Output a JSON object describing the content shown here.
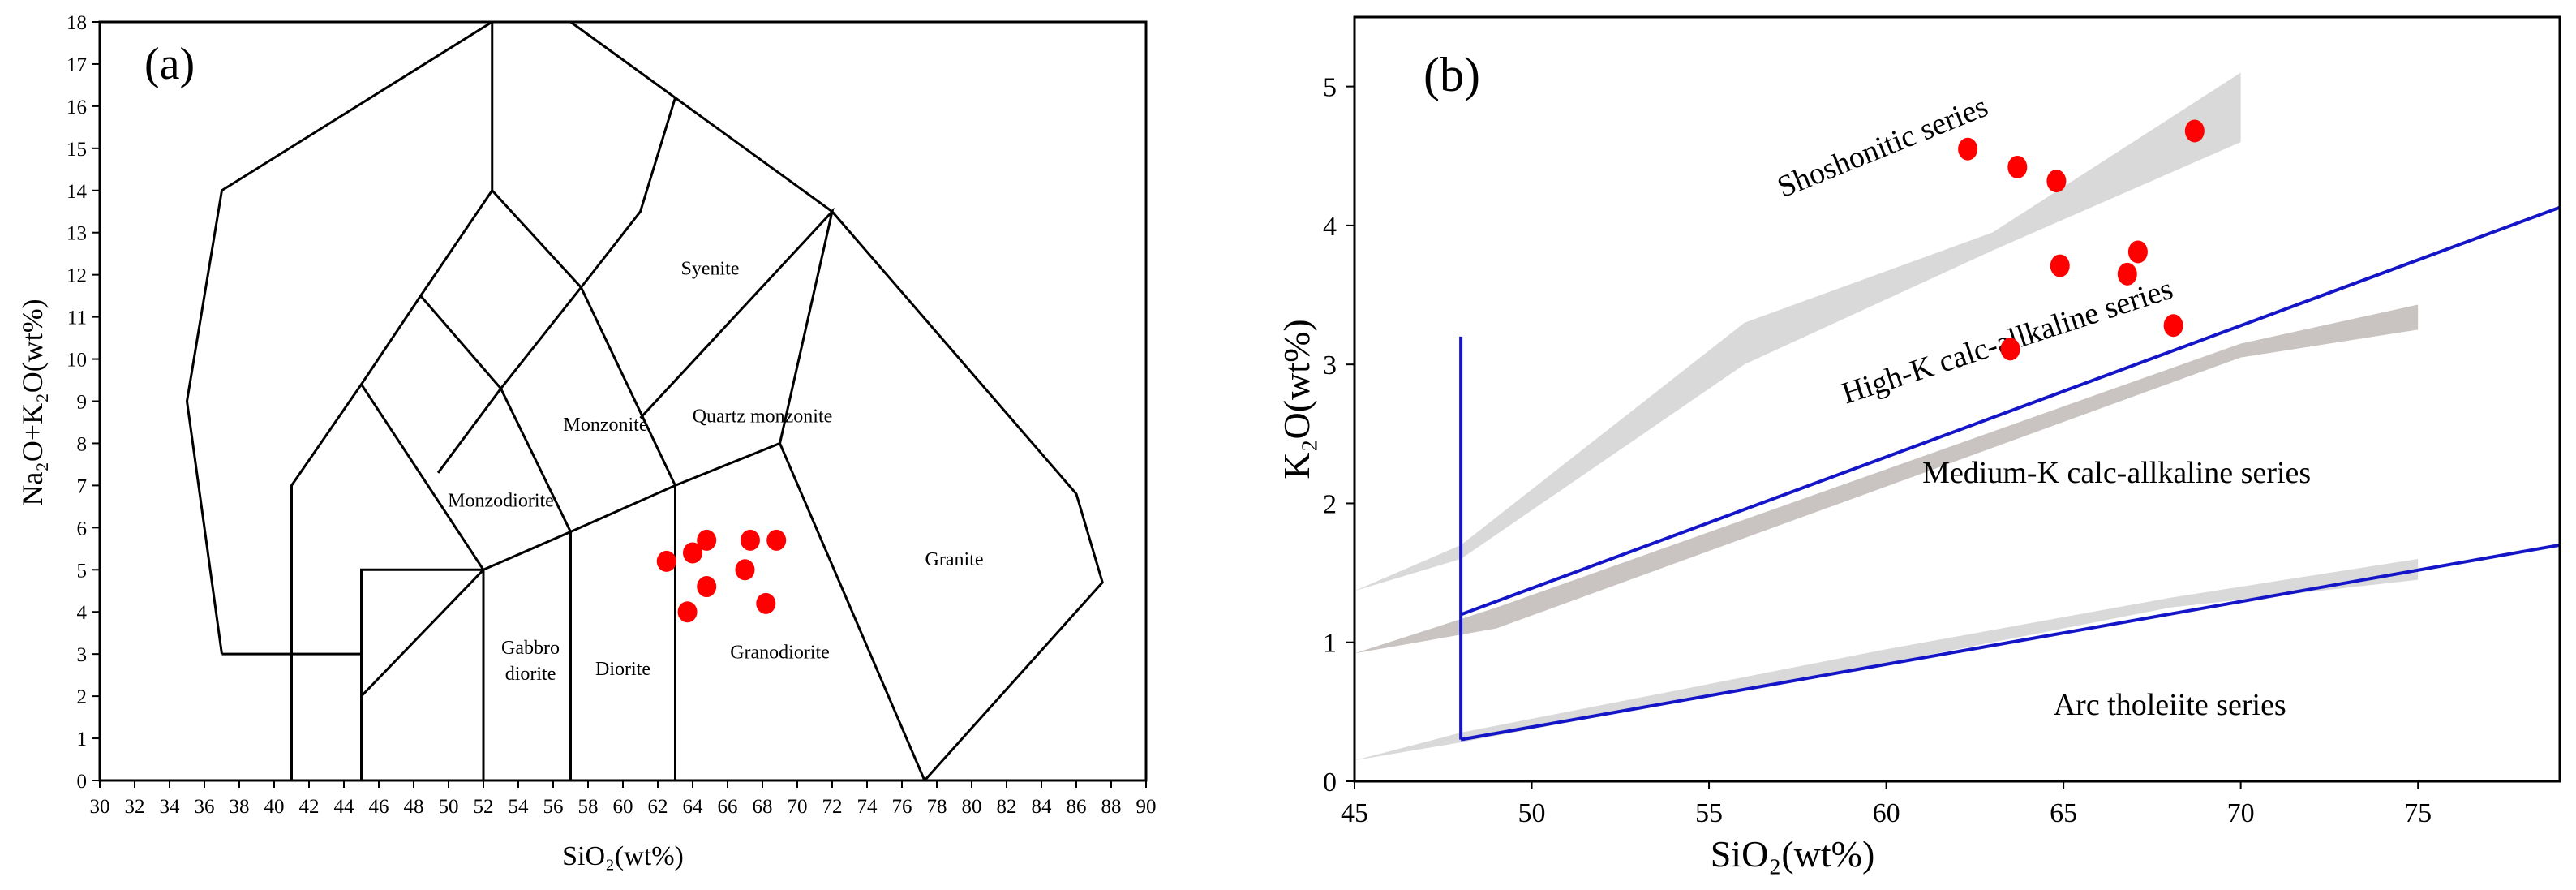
{
  "chart_data": [
    {
      "type": "scatter",
      "panel_label": "(a)",
      "xlabel": "SiO₂(wt%)",
      "ylabel": "Na₂O+K₂O(wt%)",
      "xlim": [
        30,
        90
      ],
      "ylim": [
        0,
        18
      ],
      "xticks": [
        30,
        32,
        34,
        36,
        38,
        40,
        42,
        44,
        46,
        48,
        50,
        52,
        54,
        56,
        58,
        60,
        62,
        64,
        66,
        68,
        70,
        72,
        74,
        76,
        78,
        80,
        82,
        84,
        86,
        88,
        90
      ],
      "yticks": [
        0,
        1,
        2,
        3,
        4,
        5,
        6,
        7,
        8,
        9,
        10,
        11,
        12,
        13,
        14,
        15,
        16,
        17,
        18
      ],
      "grid": false,
      "fields": [
        {
          "name": "Syenite",
          "label": [
            65.0,
            12.0
          ]
        },
        {
          "name": "Quartz monzonite",
          "label": [
            68.0,
            8.5
          ]
        },
        {
          "name": "Monzonite",
          "label": [
            59.0,
            8.3
          ]
        },
        {
          "name": "Monzodiorite",
          "label": [
            53.0,
            6.5
          ]
        },
        {
          "name": "Gabbro\ndiorite",
          "label": [
            54.7,
            3.0
          ]
        },
        {
          "name": "Diorite",
          "label": [
            60.0,
            2.5
          ]
        },
        {
          "name": "Granodiorite",
          "label": [
            69.0,
            2.9
          ]
        },
        {
          "name": "Granite",
          "label": [
            79.0,
            5.1
          ]
        }
      ],
      "points": [
        {
          "x": 62.5,
          "y": 5.2
        },
        {
          "x": 64.0,
          "y": 5.4
        },
        {
          "x": 64.8,
          "y": 5.7
        },
        {
          "x": 67.3,
          "y": 5.7
        },
        {
          "x": 68.8,
          "y": 5.7
        },
        {
          "x": 64.8,
          "y": 4.6
        },
        {
          "x": 67.0,
          "y": 5.0
        },
        {
          "x": 63.7,
          "y": 4.0
        },
        {
          "x": 68.2,
          "y": 4.2
        }
      ]
    },
    {
      "type": "scatter",
      "panel_label": "(b)",
      "xlabel": "SiO₂(wt%)",
      "ylabel": "K₂O(wt%)",
      "xlim": [
        45,
        79
      ],
      "ylim": [
        0,
        5.5
      ],
      "xticks": [
        45,
        50,
        55,
        60,
        65,
        70,
        75
      ],
      "yticks": [
        0,
        1,
        2,
        3,
        4,
        5
      ],
      "grid": false,
      "series_labels": [
        {
          "name": "Shoshonitic series",
          "pos": [
            60.0,
            4.5
          ],
          "rotate": -22
        },
        {
          "name": "High-K calc-allkaline series",
          "pos": [
            63.5,
            3.1
          ],
          "rotate": -18
        },
        {
          "name": "Medium-K calc-allkaline series",
          "pos": [
            66.5,
            2.15
          ],
          "rotate": 0
        },
        {
          "name": "Arc tholeiite series",
          "pos": [
            68.0,
            0.48
          ],
          "rotate": 0
        }
      ],
      "points": [
        {
          "x": 62.3,
          "y": 4.55
        },
        {
          "x": 63.7,
          "y": 4.42
        },
        {
          "x": 64.8,
          "y": 4.32
        },
        {
          "x": 68.7,
          "y": 4.68
        },
        {
          "x": 64.9,
          "y": 3.71
        },
        {
          "x": 67.1,
          "y": 3.81
        },
        {
          "x": 66.8,
          "y": 3.65
        },
        {
          "x": 63.5,
          "y": 3.11
        },
        {
          "x": 68.1,
          "y": 3.28
        }
      ]
    }
  ]
}
